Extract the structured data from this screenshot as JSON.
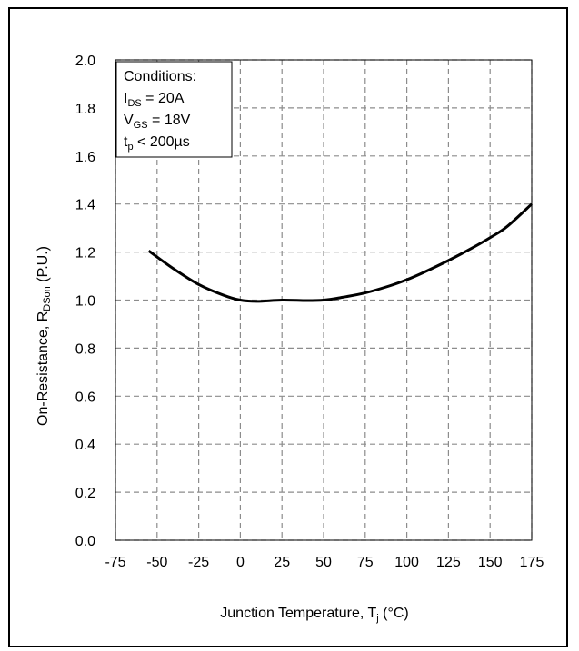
{
  "chart_data": {
    "type": "line",
    "xlabel": {
      "main": "Junction Temperature, T",
      "sub": "j",
      "unit": " (°C)"
    },
    "ylabel": {
      "main": "On-Resistance, R",
      "sub": "DSon",
      "unit": " (P.U.)"
    },
    "xlim": [
      -75,
      175
    ],
    "ylim": [
      0,
      2.0
    ],
    "grid": true,
    "grid_style": "dashed",
    "x_ticks": [
      "-75",
      "-50",
      "-25",
      "0",
      "25",
      "50",
      "75",
      "100",
      "125",
      "150",
      "175"
    ],
    "y_ticks": [
      "0.0",
      "0.2",
      "0.4",
      "0.6",
      "0.8",
      "1.0",
      "1.2",
      "1.4",
      "1.6",
      "1.8",
      "2.0"
    ],
    "series": [
      {
        "color": "#000000",
        "x": [
          -55,
          -40,
          -25,
          -10,
          0,
          10,
          25,
          40,
          50,
          60,
          75,
          90,
          100,
          110,
          125,
          140,
          150,
          160,
          175
        ],
        "y": [
          1.205,
          1.13,
          1.065,
          1.02,
          1.0,
          0.995,
          1.0,
          0.998,
          1.0,
          1.01,
          1.03,
          1.06,
          1.085,
          1.115,
          1.165,
          1.22,
          1.26,
          1.305,
          1.4
        ]
      }
    ],
    "annotation": {
      "title": "Conditions:",
      "lines": [
        {
          "main": "I",
          "sub": "DS",
          "rest": " = 20A"
        },
        {
          "main": "V",
          "sub": "GS",
          "rest": " = 18V"
        },
        {
          "main": "t",
          "sub": "p",
          "rest": " < 200µs"
        }
      ]
    }
  }
}
